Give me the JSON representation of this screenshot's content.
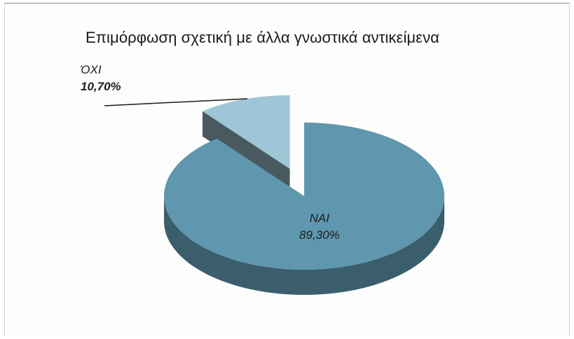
{
  "chart_data": {
    "type": "pie",
    "title": "Επιμόρφωση σχετική με άλλα γνωστικά αντικείμενα",
    "slices": [
      {
        "label": "ΝΑΙ",
        "value": 89.3,
        "value_label": "89,30%",
        "color": "#5f97ae"
      },
      {
        "label": "ΌΧΙ",
        "value": 10.7,
        "value_label": "10,70%",
        "color": "#9fc6d6",
        "exploded": true
      }
    ],
    "style": "3d-exploded",
    "legend": "none"
  }
}
